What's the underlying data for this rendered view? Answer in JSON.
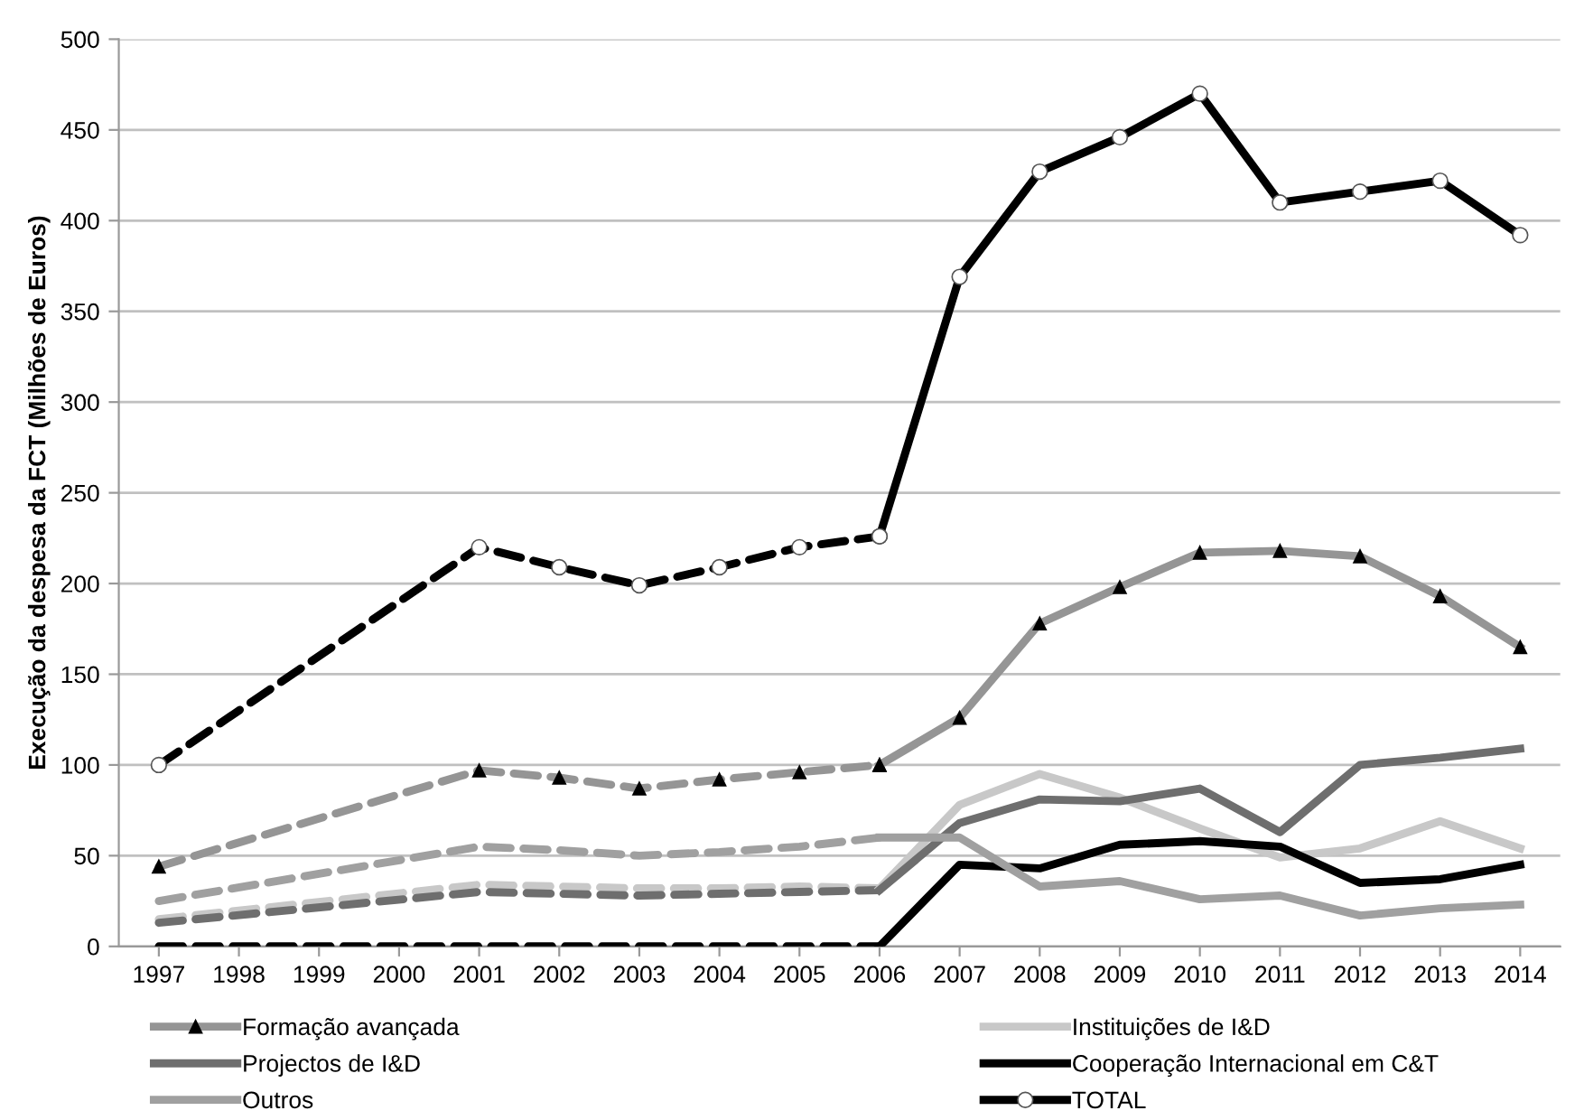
{
  "chart_data": {
    "type": "line",
    "ylabel": "Execução da despesa da FCT (Milhões de Euros)",
    "categories": [
      "1997",
      "1998",
      "1999",
      "2000",
      "2001",
      "2002",
      "2003",
      "2004",
      "2005",
      "2006",
      "2007",
      "2008",
      "2009",
      "2010",
      "2011",
      "2012",
      "2013",
      "2014"
    ],
    "ylim": [
      0,
      500
    ],
    "yticks": [
      0,
      50,
      100,
      150,
      200,
      250,
      300,
      350,
      400,
      450,
      500
    ],
    "grid": "y",
    "legend": "bottom",
    "series": [
      {
        "color": "#959595",
        "line_style": "dashed",
        "marker": "triangle",
        "values": [
          44,
          null,
          null,
          null,
          97,
          93,
          87,
          92,
          96,
          100,
          null,
          null,
          null,
          null,
          null,
          null,
          null,
          null
        ]
      },
      {
        "color": "#c8c8c8",
        "line_style": "dashed",
        "marker": "none",
        "values": [
          15,
          null,
          null,
          null,
          34,
          33,
          32,
          32,
          33,
          32,
          null,
          null,
          null,
          null,
          null,
          null,
          null,
          null
        ]
      },
      {
        "color": "#6e6e6e",
        "line_style": "dashed",
        "marker": "none",
        "values": [
          13,
          null,
          null,
          null,
          30,
          29,
          28,
          29,
          30,
          31,
          null,
          null,
          null,
          null,
          null,
          null,
          null,
          null
        ]
      },
      {
        "color": "#000000",
        "line_style": "dashed",
        "marker": "none",
        "values": [
          0,
          null,
          null,
          null,
          0,
          0,
          0,
          0,
          0,
          0,
          null,
          null,
          null,
          null,
          null,
          null,
          null,
          null
        ]
      },
      {
        "color": "#a0a0a0",
        "line_style": "dashed",
        "marker": "none",
        "values": [
          25,
          null,
          null,
          null,
          55,
          53,
          50,
          52,
          55,
          60,
          null,
          null,
          null,
          null,
          null,
          null,
          null,
          null
        ]
      },
      {
        "color": "#000000",
        "line_style": "dashed",
        "marker": "circle",
        "values": [
          100,
          null,
          null,
          null,
          220,
          209,
          199,
          209,
          220,
          226,
          null,
          null,
          null,
          null,
          null,
          null,
          null,
          null
        ]
      },
      {
        "name": "Formação avançada",
        "color": "#959595",
        "line_style": "solid",
        "marker": "triangle",
        "values": [
          null,
          null,
          null,
          null,
          null,
          null,
          null,
          null,
          null,
          100,
          126,
          178,
          198,
          217,
          218,
          215,
          193,
          165
        ]
      },
      {
        "name": "Instituições de I&D",
        "color": "#c8c8c8",
        "line_style": "solid",
        "marker": "none",
        "values": [
          null,
          null,
          null,
          null,
          null,
          null,
          null,
          null,
          null,
          32,
          78,
          95,
          82,
          65,
          49,
          54,
          69,
          54
        ]
      },
      {
        "name": "Projectos de I&D",
        "color": "#6e6e6e",
        "line_style": "solid",
        "marker": "none",
        "values": [
          null,
          null,
          null,
          null,
          null,
          null,
          null,
          null,
          null,
          31,
          68,
          81,
          80,
          87,
          63,
          100,
          104,
          109
        ]
      },
      {
        "name": "Cooperação Internacional em C&T",
        "color": "#000000",
        "line_style": "solid",
        "marker": "none",
        "values": [
          null,
          null,
          null,
          null,
          null,
          null,
          null,
          null,
          null,
          0,
          45,
          43,
          56,
          58,
          55,
          35,
          37,
          45
        ]
      },
      {
        "name": "Outros",
        "color": "#a0a0a0",
        "line_style": "solid",
        "marker": "none",
        "values": [
          null,
          null,
          null,
          null,
          null,
          null,
          null,
          null,
          null,
          60,
          60,
          33,
          36,
          26,
          28,
          17,
          21,
          23
        ]
      },
      {
        "name": "TOTAL",
        "color": "#000000",
        "line_style": "solid",
        "marker": "circle",
        "values": [
          null,
          null,
          null,
          null,
          null,
          null,
          null,
          null,
          null,
          226,
          369,
          427,
          446,
          470,
          410,
          416,
          422,
          392
        ]
      }
    ]
  }
}
